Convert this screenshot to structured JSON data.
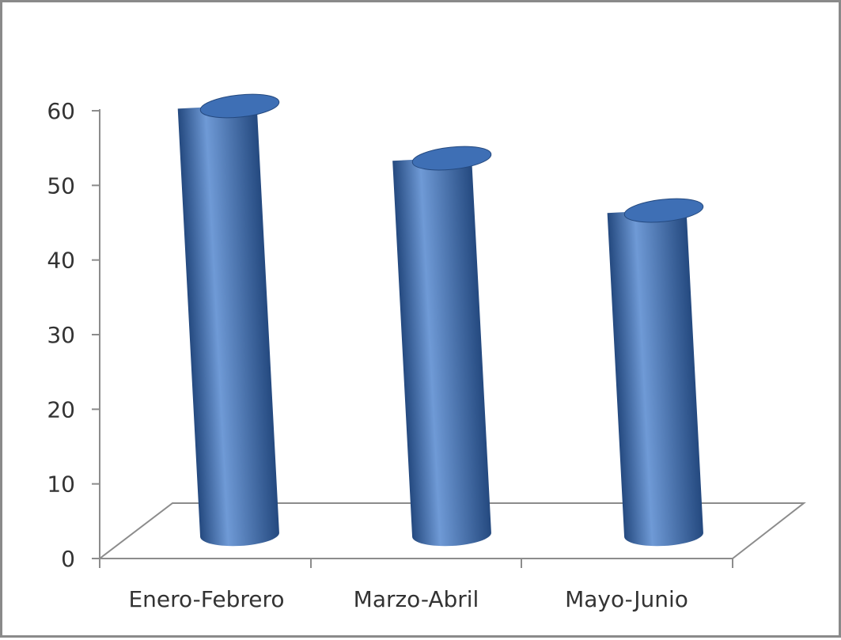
{
  "chart_data": {
    "type": "bar",
    "style": "3d-cylinder",
    "categories": [
      "Enero-Febrero",
      "Marzo-Abril",
      "Mayo-Junio"
    ],
    "series": [
      {
        "values": [
          60,
          53,
          46
        ]
      }
    ],
    "title": "",
    "xlabel": "",
    "ylabel": "",
    "ylim": [
      0,
      60
    ],
    "yticks": [
      "0",
      "10",
      "20",
      "30",
      "40",
      "50",
      "60"
    ],
    "grid": false,
    "legend": "none",
    "colors": {
      "bar": "#3e6fb5",
      "bar_light": "#6f9ad6",
      "bar_dark": "#24497f",
      "floor_line": "#8c8c8c",
      "axis": "#8c8c8c"
    }
  }
}
